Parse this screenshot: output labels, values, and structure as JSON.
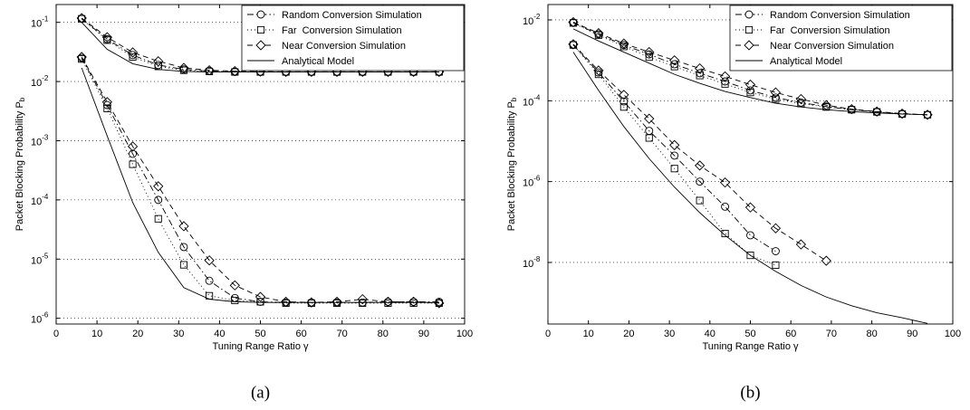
{
  "chart_data": [
    {
      "type": "line",
      "caption": "(a)",
      "xlabel": "Tuning Range Ratio γ",
      "ylabel": "Packet Blocking Probability Pb",
      "x": [
        6.25,
        12.5,
        18.75,
        25,
        31.25,
        37.5,
        43.75,
        50,
        56.25,
        62.5,
        68.75,
        75,
        81.25,
        87.5,
        93.75
      ],
      "xlim": [
        0,
        100
      ],
      "xticks": [
        0,
        10,
        20,
        30,
        40,
        50,
        60,
        70,
        80,
        90,
        100
      ],
      "ylim": [
        8e-07,
        0.2
      ],
      "log_y": true,
      "grid": "y",
      "legend": "upper right",
      "yticks": [
        {
          "value": 0.1,
          "label": "10-1"
        },
        {
          "value": 0.01,
          "label": "10-2"
        },
        {
          "value": 0.001,
          "label": "10-3"
        },
        {
          "value": 0.0001,
          "label": "10-4"
        },
        {
          "value": 1e-05,
          "label": "10-5"
        },
        {
          "value": 1e-06,
          "label": "10-6"
        }
      ],
      "series": [
        {
          "name": "Random Conversion Simulation",
          "color": "#000000",
          "marker": "circle",
          "dash": "dashdot",
          "values": [
            0.115,
            0.052,
            0.028,
            0.019,
            0.016,
            0.015,
            0.0146,
            0.0145,
            0.0145,
            0.0145,
            0.0145,
            0.0145,
            0.0145,
            0.0145,
            0.0145
          ]
        },
        {
          "name": "Far  Conversion Simulation",
          "color": "#000000",
          "marker": "square",
          "dash": "dotted",
          "values": [
            0.115,
            0.05,
            0.026,
            0.018,
            0.0155,
            0.0148,
            0.0145,
            0.0145,
            0.0145,
            0.0145,
            0.0145,
            0.0145,
            0.0145,
            0.0145,
            0.0145
          ]
        },
        {
          "name": "Near Conversion Simulation",
          "color": "#000000",
          "marker": "diamond",
          "dash": "dashed",
          "values": [
            0.118,
            0.056,
            0.031,
            0.022,
            0.017,
            0.0155,
            0.015,
            0.0147,
            0.0146,
            0.0146,
            0.0146,
            0.0146,
            0.0146,
            0.0146,
            0.0146
          ]
        },
        {
          "name": "Analytical Model",
          "color": "#000000",
          "marker": "none",
          "dash": "solid",
          "values": [
            0.1,
            0.035,
            0.02,
            0.016,
            0.0148,
            0.0145,
            0.0145,
            0.0145,
            0.0145,
            0.0145,
            0.0145,
            0.0145,
            0.0145,
            0.0145,
            0.0145
          ]
        },
        {
          "color": "#000000",
          "marker": "circle",
          "dash": "dashdot",
          "values": [
            0.025,
            0.004,
            0.0006,
            0.0001,
            1.6e-05,
            4.3e-06,
            2.2e-06,
            1.9e-06,
            1.85e-06,
            1.85e-06,
            1.85e-06,
            1.85e-06,
            1.9e-06,
            1.9e-06,
            1.9e-06
          ]
        },
        {
          "color": "#000000",
          "marker": "square",
          "dash": "dotted",
          "values": [
            0.024,
            0.0035,
            0.0004,
            4.8e-05,
            8e-06,
            2.4e-06,
            2e-06,
            1.9e-06,
            1.8e-06,
            1.8e-06,
            1.8e-06,
            1.8e-06,
            1.8e-06,
            1.8e-06,
            1.8e-06
          ]
        },
        {
          "color": "#000000",
          "marker": "diamond",
          "dash": "dashed",
          "values": [
            0.026,
            0.0045,
            0.0008,
            0.00017,
            3.6e-05,
            9.5e-06,
            3.6e-06,
            2.3e-06,
            1.9e-06,
            1.85e-06,
            1.9e-06,
            2.1e-06,
            1.9e-06,
            1.9e-06,
            1.8e-06
          ]
        },
        {
          "color": "#000000",
          "marker": "none",
          "dash": "solid",
          "values": [
            0.017,
            0.0012,
            9e-05,
            1.3e-05,
            3.3e-06,
            2.1e-06,
            1.9e-06,
            1.85e-06,
            1.85e-06,
            1.85e-06,
            1.85e-06,
            1.85e-06,
            1.85e-06,
            1.85e-06,
            1.85e-06
          ]
        }
      ]
    },
    {
      "type": "line",
      "caption": "(b)",
      "xlabel": "Tuning Range Ratio γ",
      "ylabel": "Packet Blocking Probability Pb",
      "x": [
        6.25,
        12.5,
        18.75,
        25,
        31.25,
        37.5,
        43.75,
        50,
        56.25,
        62.5,
        68.75,
        75,
        81.25,
        87.5,
        93.75
      ],
      "xlim": [
        0,
        100
      ],
      "xticks": [
        0,
        10,
        20,
        30,
        40,
        50,
        60,
        70,
        80,
        90,
        100
      ],
      "ylim": [
        3e-10,
        0.024
      ],
      "log_y": true,
      "grid": "y",
      "legend": "upper right",
      "yticks": [
        {
          "value": 0.01,
          "label": "10-2"
        },
        {
          "value": 0.0001,
          "label": "10-4"
        },
        {
          "value": 1e-06,
          "label": "10-6"
        },
        {
          "value": 1e-08,
          "label": "10-8"
        }
      ],
      "series": [
        {
          "name": "Random Conversion Simulation",
          "color": "#000000",
          "marker": "circle",
          "dash": "dashdot",
          "values": [
            0.0085,
            0.0044,
            0.0024,
            0.0014,
            0.0008,
            0.00048,
            0.0003,
            0.00018,
            0.00012,
            9e-05,
            7.2e-05,
            6e-05,
            5.3e-05,
            4.7e-05,
            4.5e-05
          ]
        },
        {
          "name": "Far  Conversion Simulation",
          "color": "#000000",
          "marker": "square",
          "dash": "dotted",
          "values": [
            0.0084,
            0.0042,
            0.0022,
            0.0012,
            0.0007,
            0.00042,
            0.00026,
            0.00016,
            0.00011,
            8.5e-05,
            7e-05,
            6e-05,
            5.3e-05,
            4.7e-05,
            4.5e-05
          ]
        },
        {
          "name": "Near Conversion Simulation",
          "color": "#000000",
          "marker": "diamond",
          "dash": "dashed",
          "values": [
            0.0088,
            0.0047,
            0.0026,
            0.0016,
            0.001,
            0.00063,
            0.0004,
            0.00025,
            0.00016,
            0.00011,
            7.8e-05,
            6.2e-05,
            5.4e-05,
            4.8e-05,
            4.5e-05
          ]
        },
        {
          "name": "Analytical Model",
          "color": "#000000",
          "marker": "none",
          "dash": "solid",
          "values": [
            0.006,
            0.003,
            0.0016,
            0.00085,
            0.00045,
            0.00027,
            0.00017,
            0.00012,
            8.7e-05,
            7e-05,
            6e-05,
            5.4e-05,
            5e-05,
            4.7e-05,
            4.5e-05
          ]
        },
        {
          "color": "#000000",
          "marker": "circle",
          "dash": "dashdot",
          "values": [
            0.0024,
            0.0005,
            9.6e-05,
            1.8e-05,
            4.4e-06,
            1e-06,
            2.4e-07,
            4.7e-08,
            1.9e-08,
            null,
            null,
            null,
            null,
            null,
            null
          ]
        },
        {
          "color": "#000000",
          "marker": "square",
          "dash": "dotted",
          "values": [
            0.0024,
            0.00045,
            7e-05,
            1.2e-05,
            2.1e-06,
            3.4e-07,
            5.2e-08,
            1.5e-08,
            8.6e-09,
            null,
            null,
            null,
            null,
            null,
            null
          ]
        },
        {
          "color": "#000000",
          "marker": "diamond",
          "dash": "dashed",
          "values": [
            0.0025,
            0.00056,
            0.00014,
            3.6e-05,
            8e-06,
            2.5e-06,
            9.5e-07,
            2.3e-07,
            7e-08,
            2.8e-08,
            1.1e-08,
            null,
            null,
            null,
            null
          ]
        },
        {
          "color": "#000000",
          "marker": "none",
          "dash": "solid",
          "values": [
            0.0016,
            0.00018,
            2.3e-05,
            3.7e-06,
            7.3e-07,
            1.7e-07,
            4.7e-08,
            1.5e-08,
            6e-09,
            2.7e-09,
            1.4e-09,
            8.5e-10,
            5.7e-10,
            4.3e-10,
            3.1e-10
          ]
        }
      ]
    }
  ]
}
